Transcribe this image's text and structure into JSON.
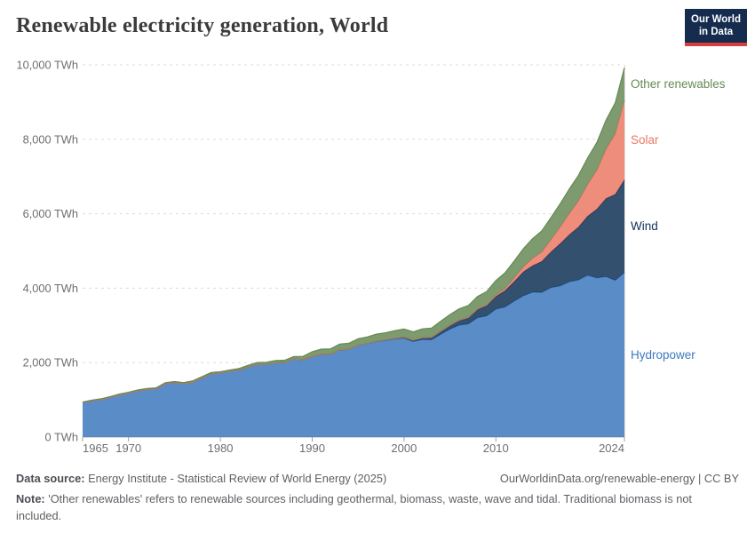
{
  "header": {
    "title": "Renewable electricity generation, World",
    "logo": {
      "line1": "Our World",
      "line2": "in Data"
    }
  },
  "chart_data": {
    "type": "area",
    "stacked": true,
    "title": "Renewable electricity generation, World",
    "xlabel": "",
    "ylabel": "TWh",
    "xlim": [
      1965,
      2024
    ],
    "ylim": [
      0,
      10000
    ],
    "grid": "dashed-horizontal",
    "legend_position": "right-of-plot-at-band-midpoints",
    "x": [
      1965,
      1966,
      1967,
      1968,
      1969,
      1970,
      1971,
      1972,
      1973,
      1974,
      1975,
      1976,
      1977,
      1978,
      1979,
      1980,
      1981,
      1982,
      1983,
      1984,
      1985,
      1986,
      1987,
      1988,
      1989,
      1990,
      1991,
      1992,
      1993,
      1994,
      1995,
      1996,
      1997,
      1998,
      1999,
      2000,
      2001,
      2002,
      2003,
      2004,
      2005,
      2006,
      2007,
      2008,
      2009,
      2010,
      2011,
      2012,
      2013,
      2014,
      2015,
      2016,
      2017,
      2018,
      2019,
      2020,
      2021,
      2022,
      2023,
      2024
    ],
    "series": [
      {
        "name": "Hydropower",
        "color": "#3d79be",
        "values": [
          926,
          975,
          1013,
          1069,
          1134,
          1181,
          1240,
          1280,
          1295,
          1432,
          1462,
          1434,
          1479,
          1589,
          1702,
          1723,
          1762,
          1800,
          1880,
          1951,
          1954,
          1996,
          2000,
          2096,
          2076,
          2159,
          2222,
          2219,
          2340,
          2353,
          2465,
          2504,
          2568,
          2593,
          2634,
          2654,
          2565,
          2617,
          2614,
          2759,
          2900,
          3004,
          3035,
          3208,
          3252,
          3437,
          3494,
          3652,
          3794,
          3893,
          3884,
          4015,
          4060,
          4171,
          4222,
          4347,
          4274,
          4311,
          4210,
          4418
        ]
      },
      {
        "name": "Wind",
        "color": "#103156",
        "values": [
          0,
          0,
          0,
          0,
          0,
          0,
          0,
          0,
          0,
          0,
          0,
          0,
          0,
          0,
          0,
          0,
          0,
          0,
          0,
          0,
          0,
          1,
          1,
          1,
          2,
          4,
          4,
          5,
          6,
          7,
          8,
          9,
          12,
          16,
          21,
          31,
          38,
          52,
          63,
          85,
          104,
          133,
          171,
          221,
          276,
          342,
          437,
          524,
          646,
          712,
          831,
          959,
          1134,
          1265,
          1421,
          1586,
          1848,
          2098,
          2310,
          2494
        ]
      },
      {
        "name": "Solar",
        "color": "#eb7965",
        "values": [
          0,
          0,
          0,
          0,
          0,
          0,
          0,
          0,
          0,
          0,
          0,
          0,
          0,
          0,
          0,
          0,
          0,
          0,
          0,
          0,
          0,
          0,
          0,
          0,
          0,
          0,
          0,
          0,
          0,
          0,
          0,
          0,
          0,
          0,
          0,
          1,
          1,
          2,
          2,
          3,
          4,
          6,
          8,
          12,
          20,
          32,
          63,
          97,
          132,
          198,
          256,
          329,
          445,
          574,
          704,
          853,
          1049,
          1322,
          1631,
          2131
        ]
      },
      {
        "name": "Other renewables",
        "color": "#668a55",
        "values": [
          14,
          15,
          16,
          18,
          20,
          23,
          24,
          26,
          27,
          28,
          29,
          30,
          31,
          31,
          32,
          31,
          37,
          41,
          46,
          51,
          54,
          58,
          63,
          68,
          89,
          131,
          137,
          145,
          153,
          161,
          170,
          177,
          185,
          193,
          205,
          216,
          222,
          237,
          249,
          264,
          282,
          300,
          318,
          338,
          359,
          394,
          420,
          455,
          489,
          527,
          565,
          593,
          625,
          655,
          686,
          713,
          745,
          784,
          830,
          880
        ]
      }
    ],
    "y_ticks": [
      {
        "value": 0,
        "label": "0 TWh"
      },
      {
        "value": 2000,
        "label": "2,000 TWh"
      },
      {
        "value": 4000,
        "label": "4,000 TWh"
      },
      {
        "value": 6000,
        "label": "6,000 TWh"
      },
      {
        "value": 8000,
        "label": "8,000 TWh"
      },
      {
        "value": 10000,
        "label": "10,000 TWh"
      }
    ],
    "x_ticks": [
      {
        "value": 1965,
        "label": "1965"
      },
      {
        "value": 1970,
        "label": "1970"
      },
      {
        "value": 1980,
        "label": "1980"
      },
      {
        "value": 1990,
        "label": "1990"
      },
      {
        "value": 2000,
        "label": "2000"
      },
      {
        "value": 2010,
        "label": "2010"
      },
      {
        "value": 2024,
        "label": "2024"
      }
    ]
  },
  "footer": {
    "data_source_label": "Data source:",
    "data_source": "Energy Institute - Statistical Review of World Energy (2025)",
    "link": "OurWorldinData.org/renewable-energy",
    "separator": "|",
    "license": "CC BY",
    "note_label": "Note:",
    "note": "'Other renewables' refers to renewable sources including geothermal, biomass, waste, wave and tidal. Traditional biomass is not included."
  }
}
